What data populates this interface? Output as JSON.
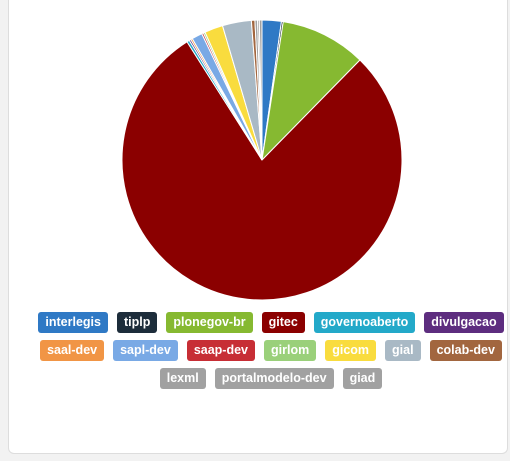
{
  "chart_data": {
    "type": "pie",
    "title": "",
    "series": [
      {
        "label": "interlegis",
        "value": 2.2,
        "color": "#2f79c5"
      },
      {
        "label": "tiplp",
        "value": 0.2,
        "color": "#1d2d3b"
      },
      {
        "label": "plonegov-br",
        "value": 9.8,
        "color": "#86b931"
      },
      {
        "label": "gitec",
        "value": 77.8,
        "color": "#8b0000"
      },
      {
        "label": "governoaberto",
        "value": 0.3,
        "color": "#23a9c9"
      },
      {
        "label": "divulgacao",
        "value": 0.2,
        "color": "#5d2d7f"
      },
      {
        "label": "saal-dev",
        "value": 0.2,
        "color": "#f19545"
      },
      {
        "label": "sapl-dev",
        "value": 1.2,
        "color": "#79a9e5"
      },
      {
        "label": "saap-dev",
        "value": 0.2,
        "color": "#c72e35"
      },
      {
        "label": "girlom",
        "value": 0.2,
        "color": "#9ad07a"
      },
      {
        "label": "gicom",
        "value": 2.1,
        "color": "#f9dc3e"
      },
      {
        "label": "gial",
        "value": 3.3,
        "color": "#a9b9c5"
      },
      {
        "label": "colab-dev",
        "value": 0.4,
        "color": "#a2663f"
      },
      {
        "label": "lexml",
        "value": 0.3,
        "color": "#a1a1a1"
      },
      {
        "label": "portalmodelo-dev",
        "value": 0.2,
        "color": "#a1a1a1"
      },
      {
        "label": "giad",
        "value": 0.3,
        "color": "#a1a1a1"
      }
    ]
  }
}
